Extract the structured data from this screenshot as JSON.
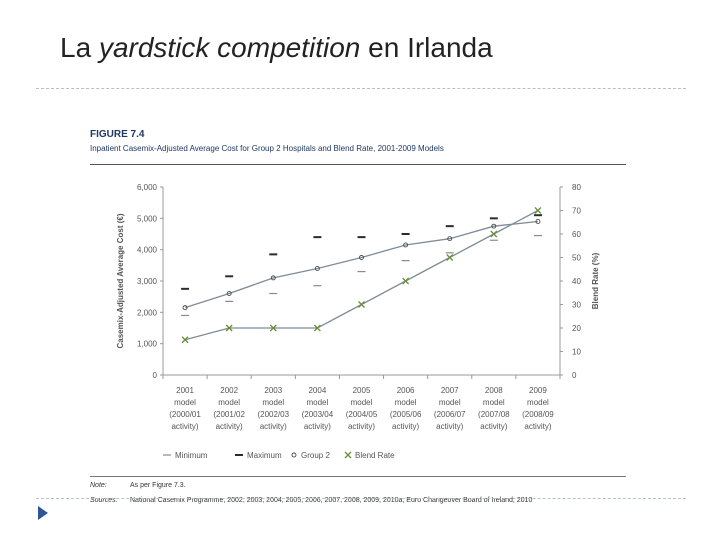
{
  "slide": {
    "title_pre": "La ",
    "title_em": "yardstick competition",
    "title_post": " en Irlanda"
  },
  "figure": {
    "label": "FIGURE 7.4",
    "subtitle": "Inpatient Casemix-Adjusted Average Cost for Group 2 Hospitals and Blend Rate, 2001-2009 Models",
    "note_label": "Note:",
    "note": "As per Figure 7.3.",
    "sources_label": "Sources:",
    "sources": "National Casemix Programme, 2002, 2003, 2004, 2005, 2006, 2007, 2008, 2009, 2010a; Euro Changeover Board of Ireland, 2010"
  },
  "colors": {
    "line": "#7f8c97",
    "marker": "#2b2b2b",
    "blend": "#6b8e3a",
    "axis_text": "#555555"
  },
  "chart_data": {
    "type": "line",
    "categories": [
      [
        "2001",
        "model",
        "(2000/01",
        "activity)"
      ],
      [
        "2002",
        "model",
        "(2001/02",
        "activity)"
      ],
      [
        "2003",
        "model",
        "(2002/03",
        "activity)"
      ],
      [
        "2004",
        "model",
        "(2003/04",
        "activity)"
      ],
      [
        "2005",
        "model",
        "(2004/05",
        "activity)"
      ],
      [
        "2006",
        "model",
        "(2005/06",
        "activity)"
      ],
      [
        "2007",
        "model",
        "(2006/07",
        "activity)"
      ],
      [
        "2008",
        "model",
        "(2007/08",
        "activity)"
      ],
      [
        "2009",
        "model",
        "(2008/09",
        "activity)"
      ]
    ],
    "ylabel": "Casemix-Adjusted Average Cost (€)",
    "y2label": "Blend Rate (%)",
    "ylim": [
      0,
      6000
    ],
    "y2lim": [
      0,
      80
    ],
    "yticks": [
      "0",
      "1,000",
      "2,000",
      "3,000",
      "4,000",
      "5,000",
      "6,000"
    ],
    "y2ticks": [
      "0",
      "10",
      "20",
      "30",
      "40",
      "50",
      "60",
      "70",
      "80"
    ],
    "series": [
      {
        "name": "Minimum",
        "axis": "left",
        "values": [
          1900,
          2350,
          2600,
          2850,
          3300,
          3650,
          3900,
          4300,
          4450
        ]
      },
      {
        "name": "Maximum",
        "axis": "left",
        "values": [
          2750,
          3150,
          3850,
          4400,
          4400,
          4500,
          4750,
          5000,
          5100
        ]
      },
      {
        "name": "Group 2",
        "axis": "left",
        "values": [
          2150,
          2600,
          3100,
          3400,
          3750,
          4150,
          4350,
          4750,
          4900
        ]
      },
      {
        "name": "Blend Rate",
        "axis": "right",
        "values": [
          15,
          20,
          20,
          20,
          30,
          40,
          50,
          60,
          70
        ]
      }
    ],
    "legend_position": "bottom"
  }
}
